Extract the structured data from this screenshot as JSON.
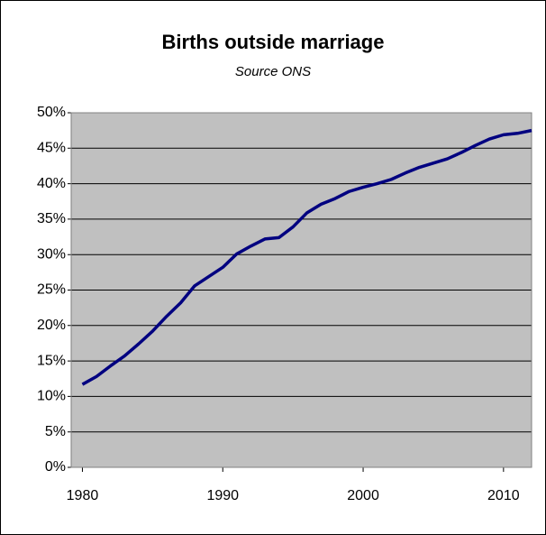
{
  "chart_data": {
    "type": "line",
    "title": "Births outside marriage",
    "subtitle": "Source ONS",
    "x": [
      1980,
      1981,
      1982,
      1983,
      1984,
      1985,
      1986,
      1987,
      1988,
      1989,
      1990,
      1991,
      1992,
      1993,
      1994,
      1995,
      1996,
      1997,
      1998,
      1999,
      2000,
      2001,
      2002,
      2003,
      2004,
      2005,
      2006,
      2007,
      2008,
      2009,
      2010,
      2011,
      2012
    ],
    "series": [
      {
        "color": "#000080",
        "values": [
          11.7,
          12.8,
          14.3,
          15.7,
          17.4,
          19.2,
          21.3,
          23.2,
          25.6,
          26.9,
          28.2,
          30.1,
          31.2,
          32.2,
          32.4,
          33.9,
          35.9,
          37.1,
          37.9,
          38.9,
          39.5,
          40.0,
          40.6,
          41.5,
          42.3,
          42.9,
          43.5,
          44.4,
          45.4,
          46.3,
          46.9,
          47.1,
          47.5
        ]
      }
    ],
    "xlim": [
      1979.2,
      2012
    ],
    "xticks": [
      1980,
      1990,
      2000,
      2010
    ],
    "ylim": [
      0,
      50
    ],
    "yticks": [
      {
        "value": 0,
        "label": "0%"
      },
      {
        "value": 5,
        "label": "5%"
      },
      {
        "value": 10,
        "label": "10%"
      },
      {
        "value": 15,
        "label": "15%"
      },
      {
        "value": 20,
        "label": "20%"
      },
      {
        "value": 25,
        "label": "25%"
      },
      {
        "value": 30,
        "label": "30%"
      },
      {
        "value": 35,
        "label": "35%"
      },
      {
        "value": 40,
        "label": "40%"
      },
      {
        "value": 45,
        "label": "45%"
      },
      {
        "value": 50,
        "label": "50%"
      }
    ],
    "grid": true,
    "plot_background": "#c0c0c0"
  }
}
